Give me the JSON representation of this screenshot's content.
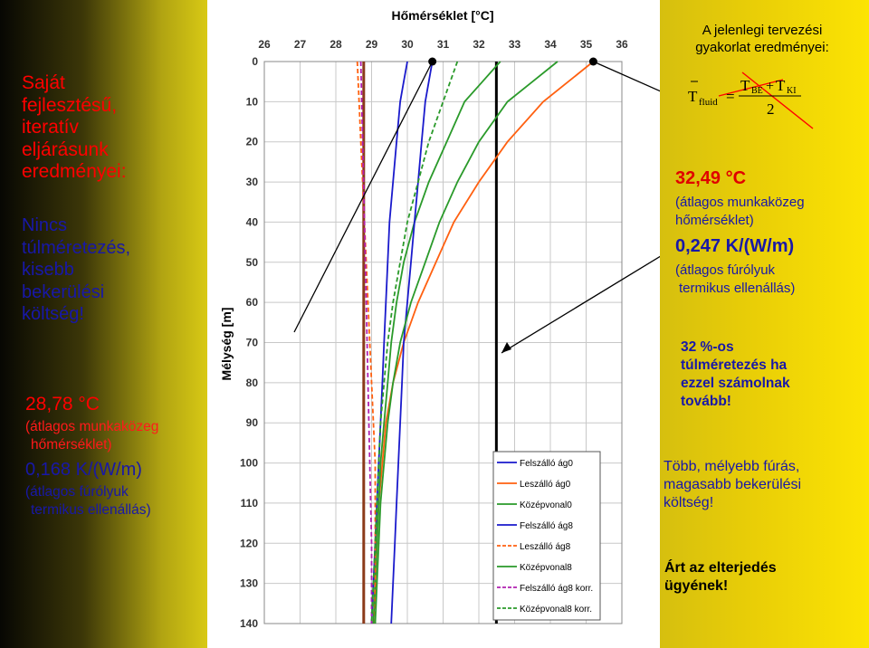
{
  "left_panel": {
    "headline": [
      "Saját",
      "fejlesztésű,",
      "iteratív",
      "eljárásunk",
      "eredményei:"
    ],
    "note": [
      "Nincs",
      "túlméretezés,",
      "kisebb",
      "bekerülési",
      "költség!"
    ],
    "temp_value": "28,78 °C",
    "temp_desc": [
      "(átlagos munkaközeg",
      "hőmérséklet)"
    ],
    "res_value": "0,168 K/(W/m)",
    "res_desc": [
      "(átlagos fúrólyuk",
      "termikus ellenállás)"
    ],
    "colors": {
      "text_red": "#ff0000",
      "text_blue": "#1818a8"
    }
  },
  "right_panel": {
    "header": [
      "A jelenlegi tervezési",
      "gyakorlat eredményei:"
    ],
    "formula": {
      "lhs": "T",
      "lhs_sub": "fluid",
      "eq": "=",
      "num_a": "T",
      "num_a_sub": "BE",
      "plus": "+",
      "num_b": "T",
      "num_b_sub": "KI",
      "den": "2"
    },
    "temp_value": "32,49 °C",
    "temp_desc": [
      "(átlagos munkaközeg",
      "hőmérséklet)"
    ],
    "res_value": "0,247 K/(W/m)",
    "res_desc": [
      "(átlagos fúrólyuk",
      "termikus ellenállás)"
    ],
    "oversize_note": [
      "32 %-os",
      "túlméretezés ha",
      "ezzel számolnak",
      "tovább!"
    ],
    "cost_note": [
      "Több, mélyebb fúrás,",
      "magasabb bekerülési",
      "költség!"
    ],
    "env_note": [
      "Árt az elterjedés",
      "ügyének!"
    ]
  },
  "chart_data": {
    "type": "line",
    "title": "Hőmérséklet [°C]",
    "xlabel": "Hőmérséklet [°C]",
    "ylabel": "Mélység [m]",
    "xlim": [
      26,
      36
    ],
    "ylim": [
      0,
      140
    ],
    "y_inverted": true,
    "x_axis_position": "top",
    "x_ticks": [
      26,
      27,
      28,
      29,
      30,
      31,
      32,
      33,
      34,
      35,
      36
    ],
    "y_ticks": [
      0,
      10,
      20,
      30,
      40,
      50,
      60,
      70,
      80,
      90,
      100,
      110,
      120,
      130,
      140
    ],
    "grid": true,
    "legend_position": "bottom-right",
    "series": [
      {
        "name": "Felszálló ág0",
        "color": "#1a1acc",
        "dash": "solid",
        "points": [
          [
            30.0,
            0
          ],
          [
            29.9,
            5
          ],
          [
            29.8,
            10
          ],
          [
            29.7,
            20
          ],
          [
            29.6,
            30
          ],
          [
            29.5,
            40
          ],
          [
            29.45,
            50
          ],
          [
            29.4,
            60
          ],
          [
            29.35,
            70
          ],
          [
            29.3,
            80
          ],
          [
            29.25,
            90
          ],
          [
            29.2,
            100
          ],
          [
            29.15,
            110
          ],
          [
            29.1,
            120
          ],
          [
            29.05,
            130
          ],
          [
            29.0,
            140
          ]
        ]
      },
      {
        "name": "Leszálló ág0",
        "color": "#ff6010",
        "dash": "solid",
        "points": [
          [
            35.2,
            0
          ],
          [
            34.5,
            5
          ],
          [
            33.8,
            10
          ],
          [
            32.8,
            20
          ],
          [
            32.0,
            30
          ],
          [
            31.3,
            40
          ],
          [
            30.8,
            50
          ],
          [
            30.3,
            60
          ],
          [
            29.9,
            70
          ],
          [
            29.6,
            80
          ],
          [
            29.4,
            90
          ],
          [
            29.3,
            100
          ],
          [
            29.2,
            110
          ],
          [
            29.15,
            120
          ],
          [
            29.1,
            130
          ],
          [
            29.05,
            140
          ]
        ]
      },
      {
        "name": "Középvonal0",
        "color": "#2a9a2a",
        "dash": "solid",
        "points": [
          [
            32.6,
            0
          ],
          [
            32.1,
            5
          ],
          [
            31.6,
            10
          ],
          [
            31.1,
            20
          ],
          [
            30.6,
            30
          ],
          [
            30.2,
            40
          ],
          [
            29.9,
            50
          ],
          [
            29.7,
            60
          ],
          [
            29.55,
            70
          ],
          [
            29.45,
            80
          ],
          [
            29.35,
            90
          ],
          [
            29.25,
            100
          ],
          [
            29.2,
            110
          ],
          [
            29.15,
            120
          ],
          [
            29.1,
            130
          ],
          [
            29.05,
            140
          ]
        ]
      },
      {
        "name": "Felszálló ág8",
        "color": "#1a1acc",
        "dash": "solid",
        "points": [
          [
            30.7,
            0
          ],
          [
            30.6,
            5
          ],
          [
            30.5,
            10
          ],
          [
            30.4,
            20
          ],
          [
            30.3,
            30
          ],
          [
            30.2,
            40
          ],
          [
            30.1,
            50
          ],
          [
            30.0,
            60
          ],
          [
            29.9,
            70
          ],
          [
            29.85,
            80
          ],
          [
            29.8,
            90
          ],
          [
            29.75,
            100
          ],
          [
            29.7,
            110
          ],
          [
            29.65,
            120
          ],
          [
            29.6,
            130
          ],
          [
            29.55,
            140
          ]
        ]
      },
      {
        "name": "Leszálló ág8",
        "color": "#ff6010",
        "dash": "dashed",
        "points": [
          [
            28.6,
            0
          ],
          [
            28.65,
            10
          ],
          [
            28.7,
            20
          ],
          [
            28.75,
            30
          ],
          [
            28.8,
            40
          ],
          [
            28.85,
            50
          ],
          [
            28.9,
            60
          ],
          [
            28.95,
            70
          ],
          [
            29.0,
            80
          ],
          [
            29.05,
            90
          ],
          [
            29.1,
            100
          ],
          [
            29.1,
            110
          ],
          [
            29.1,
            120
          ],
          [
            29.1,
            130
          ],
          [
            29.1,
            140
          ]
        ]
      },
      {
        "name": "Középvonal8",
        "color": "#2a9a2a",
        "dash": "solid",
        "points": [
          [
            34.2,
            0
          ],
          [
            33.5,
            5
          ],
          [
            32.8,
            10
          ],
          [
            32.0,
            20
          ],
          [
            31.4,
            30
          ],
          [
            30.9,
            40
          ],
          [
            30.5,
            50
          ],
          [
            30.1,
            60
          ],
          [
            29.8,
            70
          ],
          [
            29.6,
            80
          ],
          [
            29.45,
            90
          ],
          [
            29.35,
            100
          ],
          [
            29.25,
            110
          ],
          [
            29.2,
            120
          ],
          [
            29.15,
            130
          ],
          [
            29.1,
            140
          ]
        ]
      },
      {
        "name": "Felszálló ág8 korr.",
        "color": "#b020b0",
        "dash": "dashed",
        "points": [
          [
            28.7,
            0
          ],
          [
            28.75,
            20
          ],
          [
            28.8,
            40
          ],
          [
            28.85,
            60
          ],
          [
            28.9,
            80
          ],
          [
            28.95,
            100
          ],
          [
            29.0,
            120
          ],
          [
            29.0,
            140
          ]
        ]
      },
      {
        "name": "Középvonal8 korr.",
        "color": "#2a9a2a",
        "dash": "dashed",
        "points": [
          [
            31.4,
            0
          ],
          [
            31.0,
            10
          ],
          [
            30.6,
            20
          ],
          [
            30.3,
            30
          ],
          [
            30.0,
            40
          ],
          [
            29.8,
            50
          ],
          [
            29.6,
            60
          ],
          [
            29.45,
            70
          ],
          [
            29.35,
            80
          ],
          [
            29.25,
            90
          ],
          [
            29.2,
            100
          ],
          [
            29.15,
            110
          ],
          [
            29.1,
            120
          ],
          [
            29.05,
            130
          ],
          [
            29.0,
            140
          ]
        ]
      }
    ],
    "vertical_lines": [
      {
        "x": 28.78,
        "color": "#8b3a1a"
      },
      {
        "x": 32.49,
        "color": "#000000"
      }
    ],
    "markers": [
      {
        "x": 30.7,
        "y": 0
      },
      {
        "x": 35.2,
        "y": 0
      }
    ]
  }
}
